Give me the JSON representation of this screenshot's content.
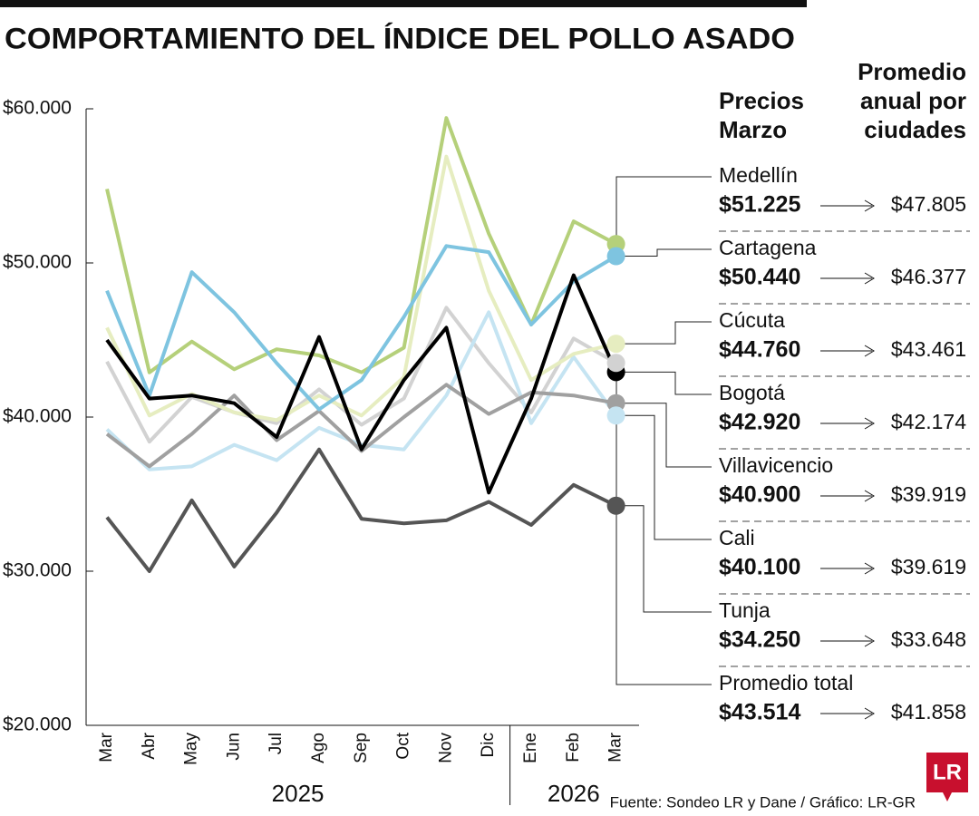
{
  "chart_data": {
    "type": "line",
    "title": "COMPORTAMIENTO DEL ÍNDICE DEL POLLO ASADO",
    "header_prices": [
      "Precios",
      "Marzo"
    ],
    "header_average": [
      "Promedio",
      "anual por",
      "ciudades"
    ],
    "source": "Fuente: Sondeo LR y Dane / Gráfico: LR-GR",
    "logo": "LR",
    "category_groups": [
      {
        "label": "2025",
        "categories": [
          "Mar",
          "Abr",
          "May",
          "Jun",
          "Jul",
          "Ago",
          "Sep",
          "Oct",
          "Nov",
          "Dic"
        ]
      },
      {
        "label": "2026",
        "categories": [
          "Ene",
          "Feb",
          "Mar"
        ]
      }
    ],
    "ylim": [
      20000,
      60000
    ],
    "yticks": [
      {
        "value": 20000,
        "label": "$20.000"
      },
      {
        "value": 30000,
        "label": "$30.000"
      },
      {
        "value": 40000,
        "label": "$40.000"
      },
      {
        "value": 50000,
        "label": "$50.000"
      },
      {
        "value": 60000,
        "label": "$60.000"
      }
    ],
    "series": [
      {
        "name": "Medellín",
        "color": "#b5d07a",
        "values": [
          54800,
          42900,
          44900,
          43100,
          44400,
          44000,
          42900,
          44500,
          59400,
          51900,
          46000,
          52700,
          51225
        ],
        "value_labels": [
          null,
          null,
          null,
          null,
          null,
          null,
          null,
          null,
          null,
          null,
          null,
          null,
          "$51.225"
        ],
        "annual_average": "$47.805"
      },
      {
        "name": "Cartagena",
        "color": "#7ec4e0",
        "values": [
          48200,
          41400,
          49400,
          46800,
          43500,
          40500,
          42400,
          46500,
          51100,
          50700,
          46000,
          48800,
          50440
        ],
        "value_labels": [
          null,
          null,
          null,
          null,
          null,
          null,
          null,
          null,
          null,
          null,
          null,
          null,
          "$50.440"
        ],
        "annual_average": "$46.377"
      },
      {
        "name": "Cúcuta",
        "color": "#e6edc0",
        "values": [
          45800,
          40100,
          41500,
          40300,
          39800,
          41400,
          40100,
          42600,
          56900,
          48200,
          42400,
          44100,
          44760
        ],
        "value_labels": [
          null,
          null,
          null,
          null,
          null,
          null,
          null,
          null,
          null,
          null,
          null,
          null,
          "$44.760"
        ],
        "annual_average": "$43.461"
      },
      {
        "name": "Bogotá",
        "color": "#000000",
        "values": [
          45000,
          41200,
          41400,
          40900,
          38700,
          45200,
          37900,
          42400,
          45800,
          35100,
          41200,
          49200,
          42920
        ],
        "value_labels": [
          null,
          null,
          null,
          null,
          null,
          null,
          null,
          null,
          null,
          null,
          null,
          null,
          "$42.920"
        ],
        "annual_average": "$42.174"
      },
      {
        "name": "Villavicencio",
        "color": "#a0a0a0",
        "values": [
          38900,
          36800,
          38900,
          41400,
          38500,
          40400,
          37800,
          40000,
          42100,
          40200,
          41600,
          41400,
          40900
        ],
        "value_labels": [
          null,
          null,
          null,
          null,
          null,
          null,
          null,
          null,
          null,
          null,
          null,
          null,
          "$40.900"
        ],
        "annual_average": "$39.919"
      },
      {
        "name": "Cali",
        "color": "#c5e4f2",
        "values": [
          39200,
          36600,
          36800,
          38200,
          37200,
          39300,
          38200,
          37900,
          41400,
          46800,
          39600,
          43900,
          40100
        ],
        "value_labels": [
          null,
          null,
          null,
          null,
          null,
          null,
          null,
          null,
          null,
          null,
          null,
          null,
          "$40.100"
        ],
        "annual_average": "$39.619"
      },
      {
        "name": "Tunja",
        "color": "#555555",
        "values": [
          33500,
          30000,
          34600,
          30300,
          33800,
          37900,
          33400,
          33100,
          33300,
          34500,
          33000,
          35600,
          34250
        ],
        "value_labels": [
          null,
          null,
          null,
          null,
          null,
          null,
          null,
          null,
          null,
          null,
          null,
          null,
          "$34.250"
        ],
        "annual_average": "$33.648"
      },
      {
        "name": "Promedio total",
        "color": "#d2d2d2",
        "values": [
          43600,
          38400,
          41300,
          40300,
          39600,
          41800,
          39500,
          41200,
          47100,
          43500,
          40300,
          45100,
          43514
        ],
        "value_labels": [
          null,
          null,
          null,
          null,
          null,
          null,
          null,
          null,
          null,
          null,
          null,
          null,
          "$43.514"
        ],
        "annual_average": "$41.858"
      }
    ]
  }
}
